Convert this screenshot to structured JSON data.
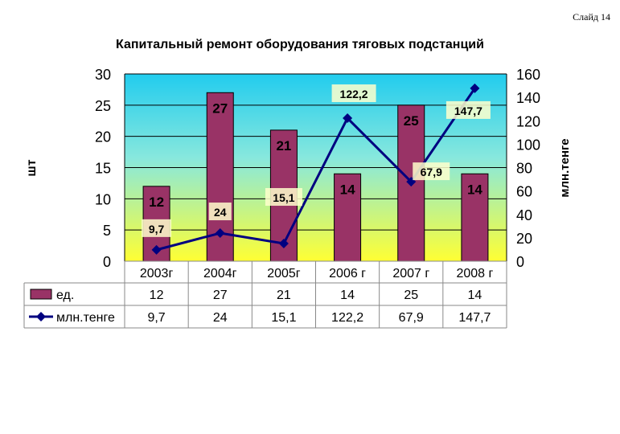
{
  "slide_label": "Слайд 14",
  "chart_data": {
    "type": "bar+line",
    "title": "Капитальный ремонт оборудования тяговых подстанций",
    "categories": [
      "2003г",
      "2004г",
      "2005г",
      "2006 г",
      "2007 г",
      "2008 г"
    ],
    "y_left": {
      "label": "шт",
      "range": [
        0,
        30
      ],
      "ticks": [
        "0",
        "5",
        "10",
        "15",
        "20",
        "25",
        "30"
      ]
    },
    "y_right": {
      "label": "млн.тенге",
      "range": [
        0,
        160
      ],
      "ticks": [
        "0",
        "20",
        "40",
        "60",
        "80",
        "100",
        "120",
        "140",
        "160"
      ]
    },
    "series": [
      {
        "name": "ед.",
        "type": "bar",
        "axis": "left",
        "color": "#993366",
        "values": [
          12,
          27,
          21,
          14,
          25,
          14
        ],
        "labels": [
          "12",
          "27",
          "21",
          "14",
          "25",
          "14"
        ]
      },
      {
        "name": "млн.тенге",
        "type": "line",
        "axis": "right",
        "color": "#000080",
        "values": [
          9.7,
          24,
          15.1,
          122.2,
          67.9,
          147.7
        ],
        "labels": [
          "9,7",
          "24",
          "15,1",
          "122,2",
          "67,9",
          "147,7"
        ]
      }
    ],
    "data_table": true,
    "background": "gradient cyan-yellow"
  }
}
